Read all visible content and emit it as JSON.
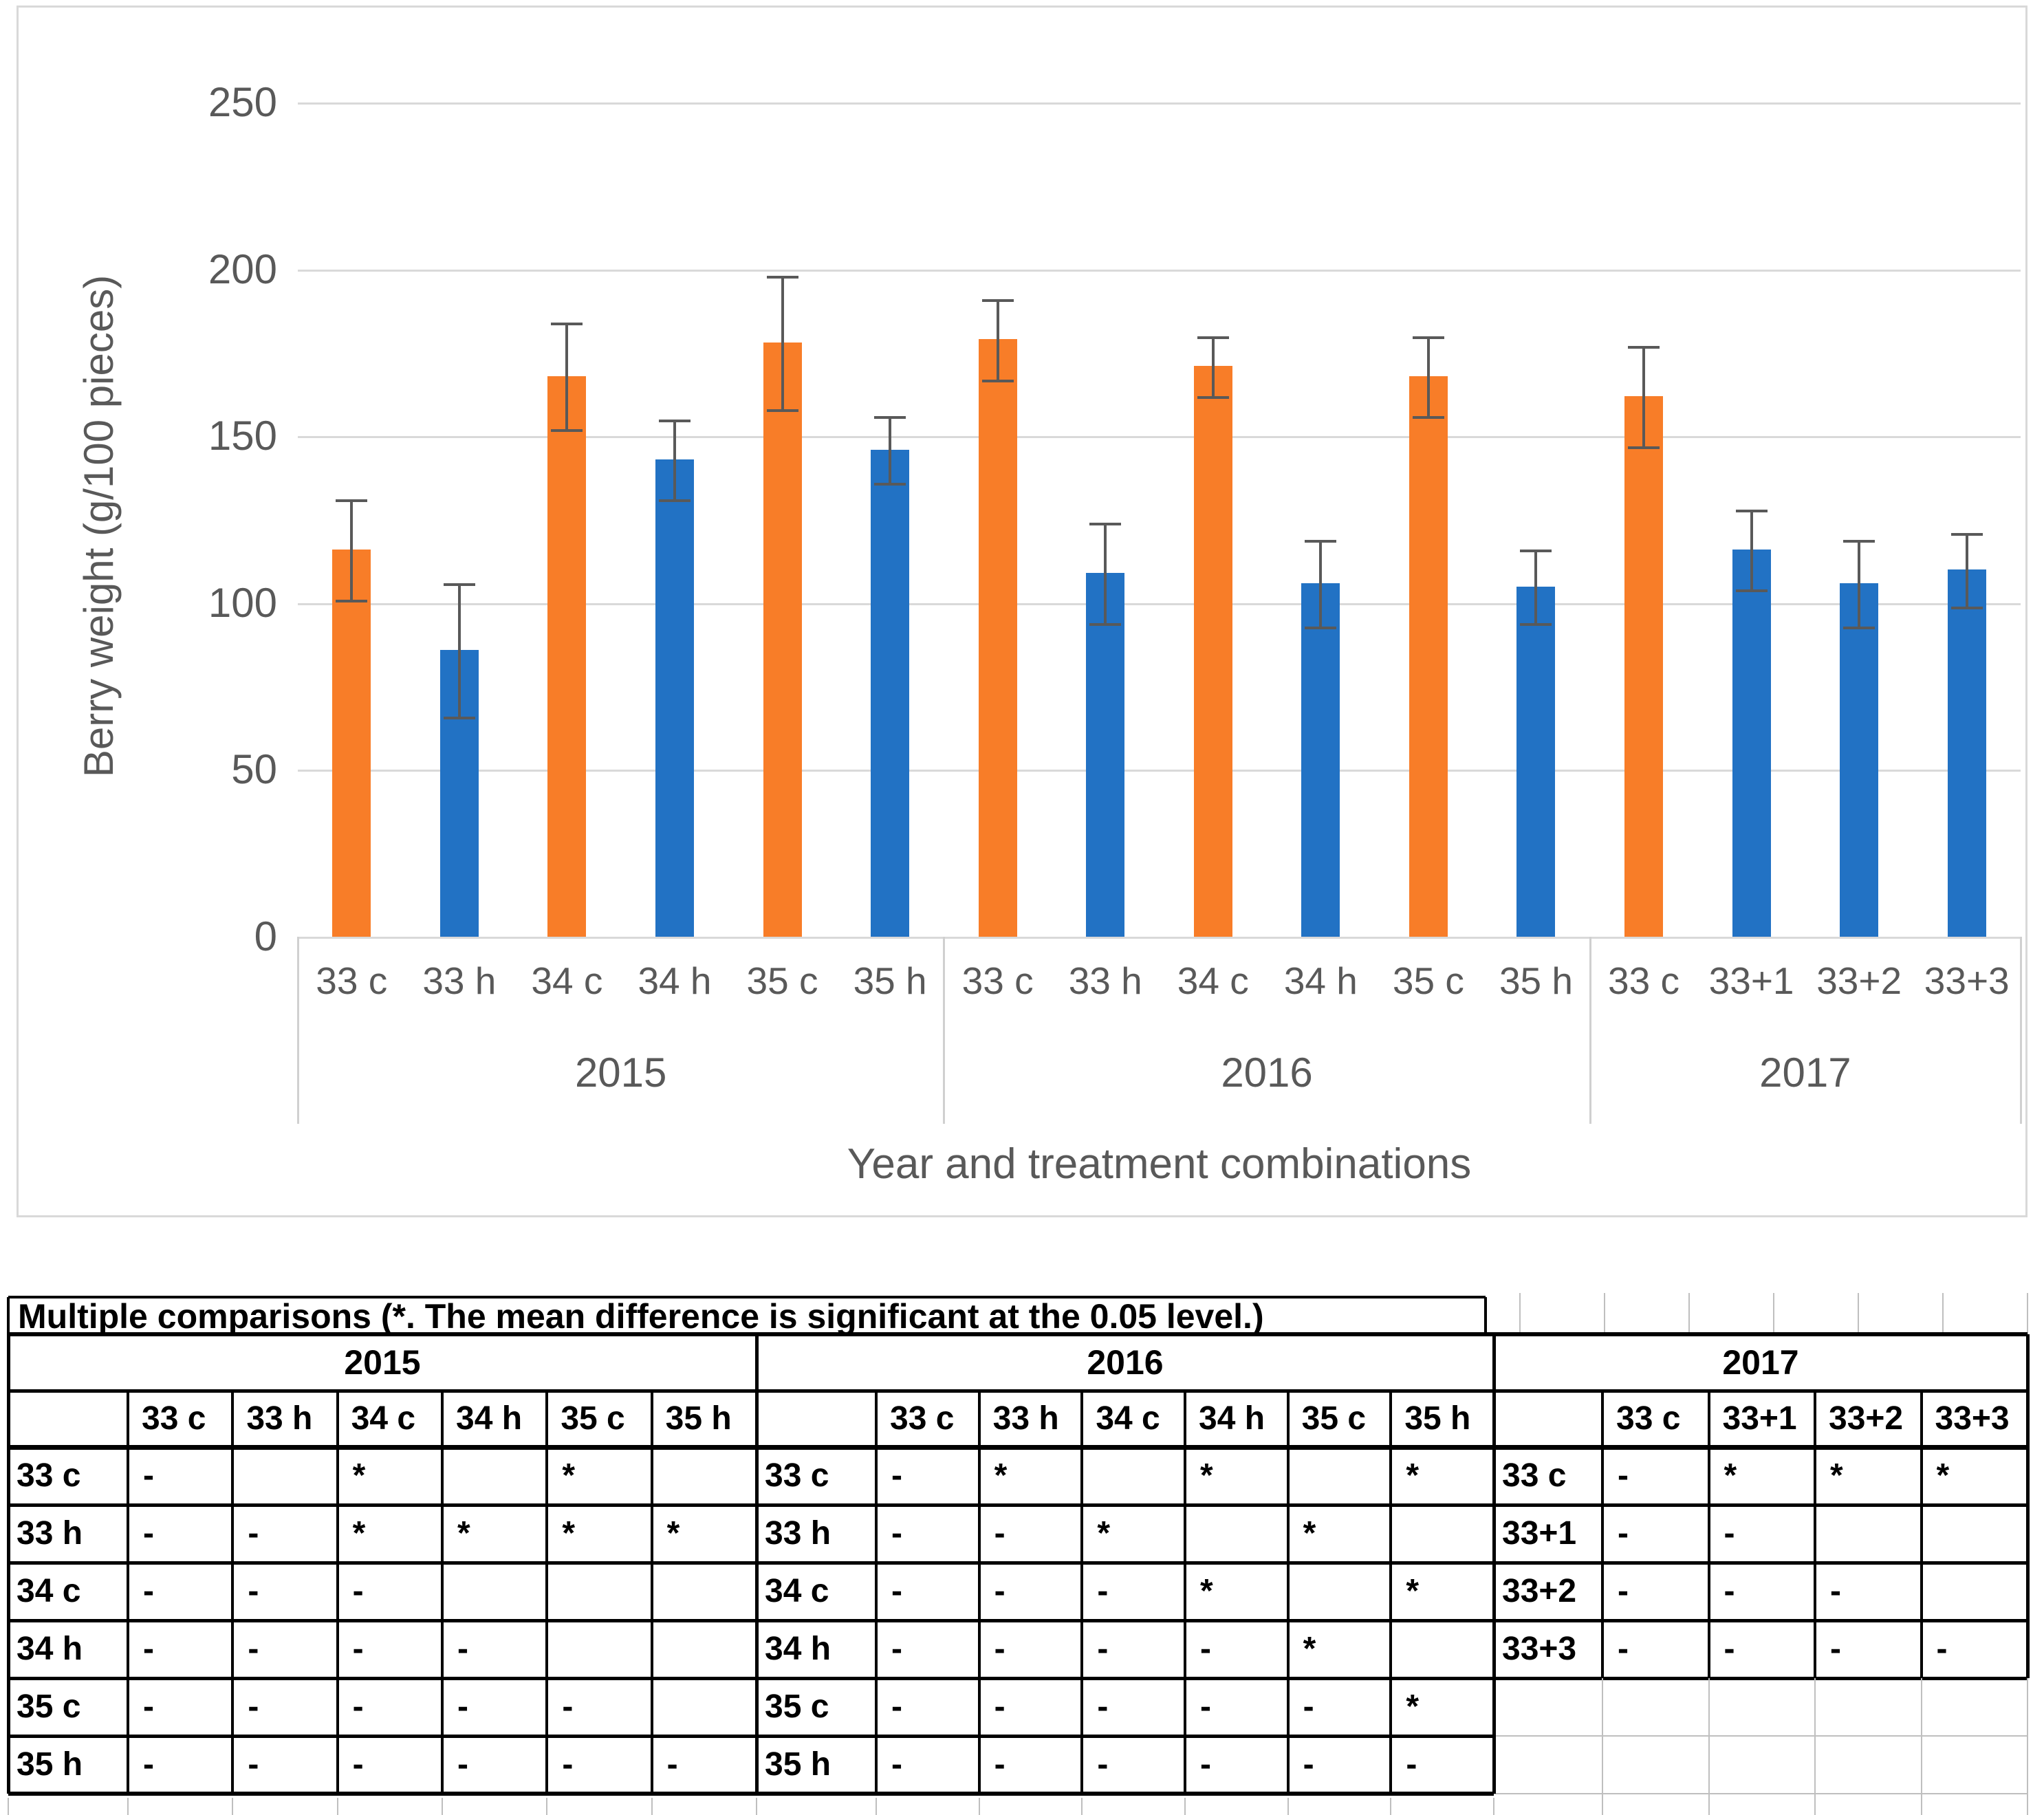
{
  "chart_data": {
    "type": "bar",
    "title": "",
    "ylabel": "Berry weight (g/100 pieces)",
    "xlabel": "Year and treatment combinations",
    "ylim": [
      0,
      250
    ],
    "yticks": [
      0,
      50,
      100,
      150,
      200,
      250
    ],
    "grid": true,
    "legend": "none",
    "colors": {
      "orange": "#F87D28",
      "blue": "#2272C4",
      "error_bar": "#595959",
      "gridline": "#D9D9D9",
      "axis_text": "#595959"
    },
    "groups": [
      {
        "year": "2015",
        "bars": [
          {
            "label": "33 c",
            "value": 116,
            "error": 15,
            "color": "orange"
          },
          {
            "label": "33 h",
            "value": 86,
            "error": 20,
            "color": "blue"
          },
          {
            "label": "34 c",
            "value": 168,
            "error": 16,
            "color": "orange"
          },
          {
            "label": "34 h",
            "value": 143,
            "error": 12,
            "color": "blue"
          },
          {
            "label": "35 c",
            "value": 178,
            "error": 20,
            "color": "orange"
          },
          {
            "label": "35 h",
            "value": 146,
            "error": 10,
            "color": "blue"
          }
        ]
      },
      {
        "year": "2016",
        "bars": [
          {
            "label": "33 c",
            "value": 179,
            "error": 12,
            "color": "orange"
          },
          {
            "label": "33 h",
            "value": 109,
            "error": 15,
            "color": "blue"
          },
          {
            "label": "34 c",
            "value": 171,
            "error": 9,
            "color": "orange"
          },
          {
            "label": "34 h",
            "value": 106,
            "error": 13,
            "color": "blue"
          },
          {
            "label": "35 c",
            "value": 168,
            "error": 12,
            "color": "orange"
          },
          {
            "label": "35 h",
            "value": 105,
            "error": 11,
            "color": "blue"
          }
        ]
      },
      {
        "year": "2017",
        "bars": [
          {
            "label": "33 c",
            "value": 162,
            "error": 15,
            "color": "orange"
          },
          {
            "label": "33+1",
            "value": 116,
            "error": 12,
            "color": "blue"
          },
          {
            "label": "33+2",
            "value": 106,
            "error": 13,
            "color": "blue"
          },
          {
            "label": "33+3",
            "value": 110,
            "error": 11,
            "color": "blue"
          }
        ]
      }
    ]
  },
  "comparison_table": {
    "title": "Multiple comparisons (*. The mean difference is significant at the 0.05 level.)",
    "significance_marker": "*",
    "no_difference_marker": "-",
    "sections": [
      {
        "year": "2015",
        "columns": [
          "33 c",
          "33 h",
          "34 c",
          "34 h",
          "35 c",
          "35 h"
        ],
        "rows": [
          {
            "label": "33 c",
            "cells": [
              "-",
              "",
              "*",
              "",
              "*",
              ""
            ]
          },
          {
            "label": "33 h",
            "cells": [
              "-",
              "-",
              "*",
              "*",
              "*",
              "*"
            ]
          },
          {
            "label": "34 c",
            "cells": [
              "-",
              "-",
              "-",
              "",
              "",
              ""
            ]
          },
          {
            "label": "34 h",
            "cells": [
              "-",
              "-",
              "-",
              "-",
              "",
              ""
            ]
          },
          {
            "label": "35 c",
            "cells": [
              "-",
              "-",
              "-",
              "-",
              "-",
              ""
            ]
          },
          {
            "label": "35 h",
            "cells": [
              "-",
              "-",
              "-",
              "-",
              "-",
              "-"
            ]
          }
        ]
      },
      {
        "year": "2016",
        "columns": [
          "33 c",
          "33 h",
          "34 c",
          "34 h",
          "35 c",
          "35 h"
        ],
        "rows": [
          {
            "label": "33 c",
            "cells": [
              "-",
              "*",
              "",
              "*",
              "",
              "*"
            ]
          },
          {
            "label": "33 h",
            "cells": [
              "-",
              "-",
              "*",
              "",
              "*",
              ""
            ]
          },
          {
            "label": "34 c",
            "cells": [
              "-",
              "-",
              "-",
              "*",
              "",
              "*"
            ]
          },
          {
            "label": "34 h",
            "cells": [
              "-",
              "-",
              "-",
              "-",
              "*",
              ""
            ]
          },
          {
            "label": "35 c",
            "cells": [
              "-",
              "-",
              "-",
              "-",
              "-",
              "*"
            ]
          },
          {
            "label": "35 h",
            "cells": [
              "-",
              "-",
              "-",
              "-",
              "-",
              "-"
            ]
          }
        ]
      },
      {
        "year": "2017",
        "columns": [
          "33 c",
          "33+1",
          "33+2",
          "33+3"
        ],
        "rows": [
          {
            "label": "33 c",
            "cells": [
              "-",
              "*",
              "*",
              "*"
            ]
          },
          {
            "label": "33+1",
            "cells": [
              "-",
              "-",
              "",
              ""
            ]
          },
          {
            "label": "33+2",
            "cells": [
              "-",
              "-",
              "-",
              ""
            ]
          },
          {
            "label": "33+3",
            "cells": [
              "-",
              "-",
              "-",
              "-"
            ]
          }
        ]
      }
    ]
  }
}
